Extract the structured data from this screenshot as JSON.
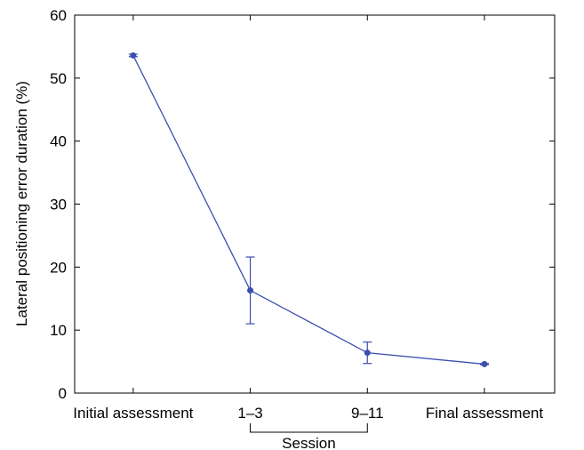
{
  "chart_data": {
    "type": "line",
    "title": "",
    "xlabel": "",
    "ylabel": "Lateral positioning error duration (%)",
    "categories": [
      "Initial assessment",
      "1–3",
      "9–11",
      "Final assessment"
    ],
    "x": [
      1,
      2,
      3,
      4
    ],
    "series": [
      {
        "values": [
          53.6,
          16.3,
          6.4,
          4.6
        ],
        "error_low": [
          53.4,
          11.0,
          4.7,
          4.5
        ],
        "error_high": [
          53.8,
          21.6,
          8.1,
          4.7
        ],
        "color": "#3b4fb0"
      }
    ],
    "ylim": [
      0,
      60
    ],
    "yticks": [
      0,
      10,
      20,
      30,
      40,
      50,
      60
    ],
    "xlim": [
      0.5,
      4.6
    ],
    "grid": false,
    "bracket": {
      "label": "Session",
      "from_category": 1,
      "to_category": 2
    }
  }
}
